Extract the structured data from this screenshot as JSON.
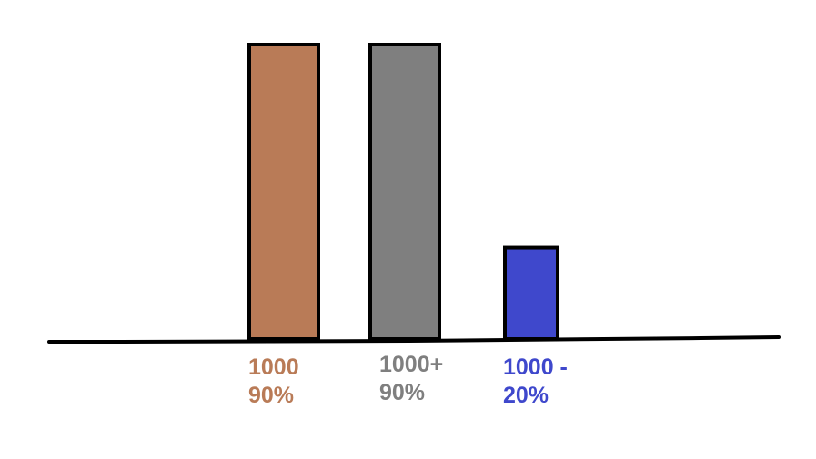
{
  "chart_data": {
    "type": "bar",
    "title": "",
    "xlabel": "",
    "ylabel": "",
    "categories": [
      {
        "lines": [
          "1000",
          "90%"
        ]
      },
      {
        "lines": [
          "1000+",
          "90%"
        ]
      },
      {
        "lines": [
          "1000 -",
          "20%"
        ]
      }
    ],
    "values": [
      100,
      100,
      31
    ],
    "ylim": [
      0,
      100
    ],
    "colors": [
      "#b97b57",
      "#7f7f7f",
      "#3f48cc"
    ],
    "label_colors": [
      "#b97b57",
      "#7f7f7f",
      "#3f48cc"
    ],
    "axis_color": "#000000",
    "bar_stroke": "#000000",
    "grid": false,
    "legend": "none"
  }
}
